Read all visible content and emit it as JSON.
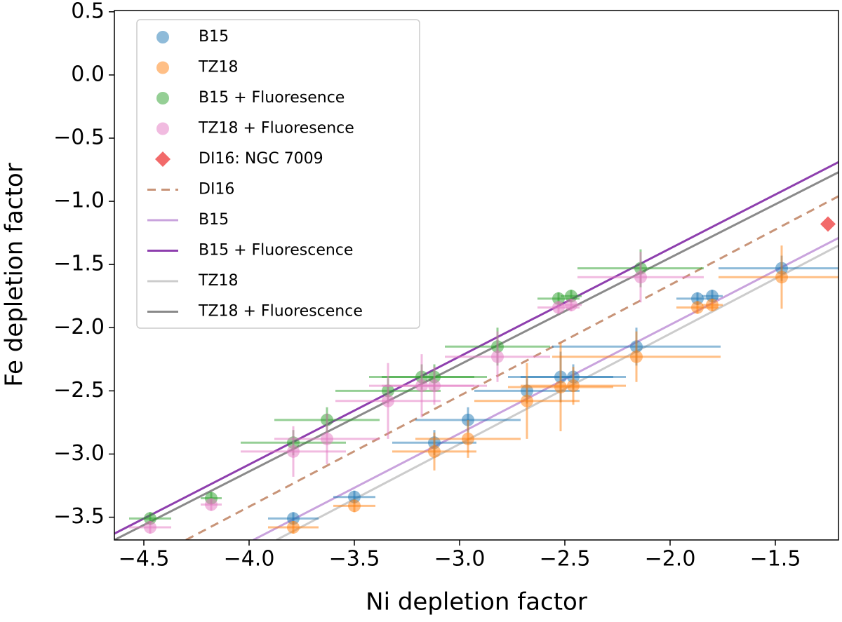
{
  "chart_data": {
    "type": "scatter",
    "xlabel": "Ni depletion factor",
    "ylabel": "Fe depletion factor",
    "xlim": [
      -4.64,
      -1.2
    ],
    "ylim": [
      -3.68,
      0.51
    ],
    "xticks": [
      {
        "value": -4.5,
        "label": "−4.5"
      },
      {
        "value": -4.0,
        "label": "−4.0"
      },
      {
        "value": -3.5,
        "label": "−3.5"
      },
      {
        "value": -3.0,
        "label": "−3.0"
      },
      {
        "value": -2.5,
        "label": "−2.5"
      },
      {
        "value": -2.0,
        "label": "−2.0"
      },
      {
        "value": -1.5,
        "label": "−1.5"
      }
    ],
    "yticks": [
      {
        "value": 0.5,
        "label": "0.5"
      },
      {
        "value": 0.0,
        "label": "0.0"
      },
      {
        "value": -0.5,
        "label": "−0.5"
      },
      {
        "value": -1.0,
        "label": "−1.0"
      },
      {
        "value": -1.5,
        "label": "−1.5"
      },
      {
        "value": -2.0,
        "label": "−2.0"
      },
      {
        "value": -2.5,
        "label": "−2.5"
      },
      {
        "value": -3.0,
        "label": "−3.0"
      },
      {
        "value": -3.5,
        "label": "−3.5"
      }
    ],
    "legend": "upper left",
    "series": [
      {
        "name": "B15",
        "kind": "scatter",
        "marker": "circle",
        "color": "#1f77b4",
        "alpha": 0.5,
        "x": [
          -3.79,
          -3.5,
          -3.12,
          -2.96,
          -2.68,
          -2.52,
          -2.46,
          -2.16,
          -1.87,
          -1.8,
          -1.47
        ],
        "y": [
          -3.51,
          -3.34,
          -2.91,
          -2.73,
          -2.5,
          -2.39,
          -2.39,
          -2.15,
          -1.77,
          -1.75,
          -1.53
        ],
        "xerr": [
          0.12,
          0.1,
          0.2,
          0.25,
          0.25,
          0.25,
          0.25,
          0.4,
          0.1,
          0.05,
          0.3
        ],
        "yerr": [
          0.05,
          0.05,
          0.1,
          0.1,
          0.1,
          0.2,
          0.1,
          0.15,
          0.05,
          0.05,
          0.1
        ]
      },
      {
        "name": "TZ18",
        "kind": "scatter",
        "marker": "circle",
        "color": "#ff7f0e",
        "alpha": 0.5,
        "x": [
          -3.79,
          -3.5,
          -3.12,
          -2.96,
          -2.68,
          -2.52,
          -2.46,
          -2.16,
          -1.87,
          -1.8,
          -1.47
        ],
        "y": [
          -3.58,
          -3.41,
          -2.98,
          -2.88,
          -2.58,
          -2.47,
          -2.46,
          -2.23,
          -1.84,
          -1.82,
          -1.6
        ],
        "xerr": [
          0.12,
          0.1,
          0.2,
          0.25,
          0.25,
          0.25,
          0.25,
          0.4,
          0.1,
          0.05,
          0.3
        ],
        "yerr": [
          0.05,
          0.05,
          0.15,
          0.15,
          0.3,
          0.35,
          0.15,
          0.2,
          0.05,
          0.05,
          0.25
        ]
      },
      {
        "name": "B15 + Fluoresence",
        "kind": "scatter",
        "marker": "circle",
        "color": "#2ca02c",
        "alpha": 0.5,
        "x": [
          -4.47,
          -4.18,
          -3.79,
          -3.63,
          -3.34,
          -3.18,
          -3.12,
          -2.82,
          -2.53,
          -2.47,
          -2.14
        ],
        "y": [
          -3.51,
          -3.35,
          -2.91,
          -2.73,
          -2.5,
          -2.39,
          -2.39,
          -2.15,
          -1.77,
          -1.75,
          -1.53
        ],
        "xerr": [
          0.1,
          0.05,
          0.25,
          0.25,
          0.25,
          0.25,
          0.25,
          0.25,
          0.1,
          0.05,
          0.3
        ],
        "yerr": [
          0.05,
          0.05,
          0.1,
          0.1,
          0.1,
          0.1,
          0.1,
          0.15,
          0.05,
          0.05,
          0.15
        ]
      },
      {
        "name": "TZ18 + Fluoresence",
        "kind": "scatter",
        "marker": "circle",
        "color": "#e377c2",
        "alpha": 0.5,
        "x": [
          -4.47,
          -4.18,
          -3.79,
          -3.63,
          -3.34,
          -3.18,
          -3.12,
          -2.82,
          -2.53,
          -2.47,
          -2.14
        ],
        "y": [
          -3.58,
          -3.4,
          -2.98,
          -2.88,
          -2.58,
          -2.46,
          -2.46,
          -2.23,
          -1.84,
          -1.82,
          -1.6
        ],
        "xerr": [
          0.1,
          0.05,
          0.25,
          0.25,
          0.25,
          0.25,
          0.25,
          0.25,
          0.1,
          0.05,
          0.3
        ],
        "yerr": [
          0.05,
          0.05,
          0.2,
          0.2,
          0.3,
          0.25,
          0.15,
          0.2,
          0.05,
          0.05,
          0.2
        ]
      },
      {
        "name": "DI16: NGC 7009",
        "kind": "scatter",
        "marker": "diamond",
        "color": "#f05050",
        "alpha": 0.85,
        "x": [
          -1.25
        ],
        "y": [
          -1.18
        ]
      },
      {
        "name": "DI16",
        "kind": "line",
        "linestyle": "dashed",
        "color": "#c89478",
        "alpha": 1,
        "x": [
          -4.3,
          -1.2
        ],
        "y": [
          -3.68,
          -0.96
        ]
      },
      {
        "name": "B15",
        "kind": "line",
        "linestyle": "solid",
        "color": "#c9a3dd",
        "alpha": 1,
        "x": [
          -3.98,
          -1.2
        ],
        "y": [
          -3.68,
          -1.29
        ]
      },
      {
        "name": "B15 + Fluorescence",
        "kind": "line",
        "linestyle": "solid",
        "color": "#8e3fae",
        "alpha": 1,
        "x": [
          -4.64,
          -1.2
        ],
        "y": [
          -3.63,
          -0.69
        ]
      },
      {
        "name": "TZ18",
        "kind": "line",
        "linestyle": "solid",
        "color": "#cccccc",
        "alpha": 1,
        "x": [
          -3.87,
          -1.2
        ],
        "y": [
          -3.68,
          -1.35
        ]
      },
      {
        "name": "TZ18 + Fluorescence",
        "kind": "line",
        "linestyle": "solid",
        "color": "#8a8a8a",
        "alpha": 1,
        "x": [
          -4.64,
          -1.2
        ],
        "y": [
          -3.68,
          -0.77
        ]
      }
    ]
  }
}
